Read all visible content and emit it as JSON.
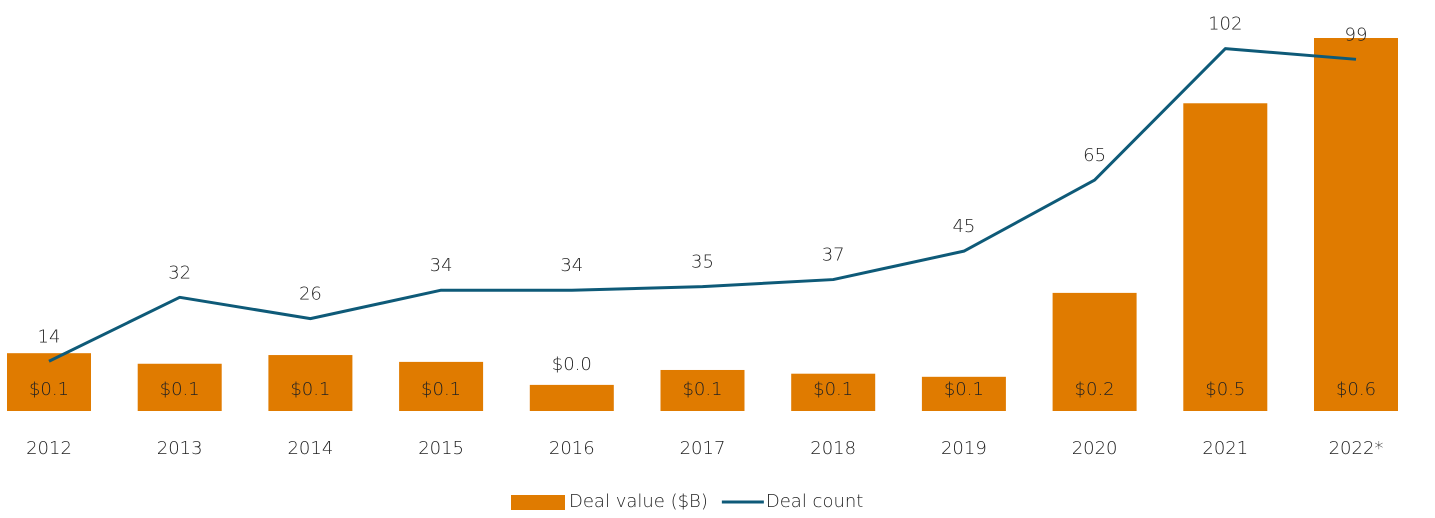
{
  "chart_data": {
    "type": "bar_line",
    "categories": [
      "2012",
      "2013",
      "2014",
      "2015",
      "2016",
      "2017",
      "2018",
      "2019",
      "2020",
      "2021",
      "2022*"
    ],
    "series": [
      {
        "name": "Deal value ($B)",
        "type": "bar",
        "color": "#e07b00",
        "values": [
          0.093,
          0.076,
          0.09,
          0.079,
          0.042,
          0.066,
          0.06,
          0.055,
          0.19,
          0.495,
          0.6
        ],
        "value_labels": [
          "$0.1",
          "$0.1",
          "$0.1",
          "$0.1",
          "$0.0",
          "$0.1",
          "$0.1",
          "$0.1",
          "$0.2",
          "$0.5",
          "$0.6"
        ]
      },
      {
        "name": "Deal count",
        "type": "line",
        "axis": "y2",
        "color": "#0e5a78",
        "values": [
          14,
          32,
          26,
          34,
          34,
          35,
          37,
          45,
          65,
          102,
          99
        ]
      }
    ],
    "ylim": [
      0,
      0.6
    ],
    "y2lim": [
      0,
      105
    ],
    "legend": "bottom"
  }
}
